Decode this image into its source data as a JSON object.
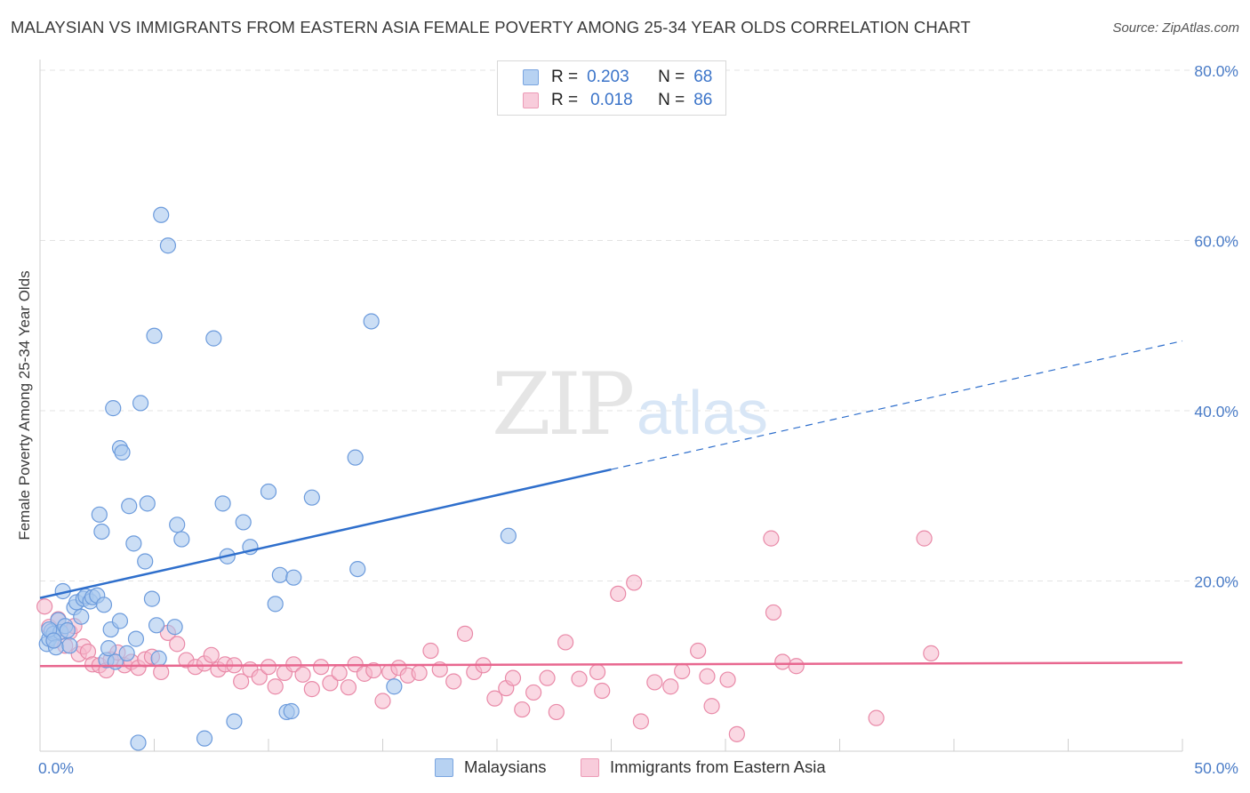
{
  "title": "MALAYSIAN VS IMMIGRANTS FROM EASTERN ASIA FEMALE POVERTY AMONG 25-34 YEAR OLDS CORRELATION CHART",
  "source": "Source: ZipAtlas.com",
  "watermark": {
    "zip": "ZIP",
    "atlas": "atlas"
  },
  "legend_top": [
    {
      "r_label": "R =",
      "r_value": "0.203",
      "n_label": "N =",
      "n_value": "68"
    },
    {
      "r_label": "R =",
      "r_value": "0.018",
      "n_label": "N =",
      "n_value": "86"
    }
  ],
  "legend_bottom": [
    {
      "label": "Malaysians"
    },
    {
      "label": "Immigrants from Eastern Asia"
    }
  ],
  "colors": {
    "blue_fill": "#a9c8ef",
    "blue_stroke": "#6c9bdc",
    "blue_line": "#2f6fcc",
    "pink_fill": "#f5b8cc",
    "pink_stroke": "#e98aa8",
    "pink_line": "#e8678f",
    "tick_text": "#4a7cc7",
    "grid": "#e3e3e3"
  },
  "chart_data": {
    "type": "scatter",
    "title": "MALAYSIAN VS IMMIGRANTS FROM EASTERN ASIA FEMALE POVERTY AMONG 25-34 YEAR OLDS CORRELATION CHART",
    "xlabel": "",
    "ylabel": "Female Poverty Among 25-34 Year Olds",
    "xlim": [
      0,
      50
    ],
    "ylim": [
      0,
      80
    ],
    "x_tick_labels": [
      "0.0%",
      "50.0%"
    ],
    "y_ticks": [
      20,
      40,
      60,
      80
    ],
    "y_tick_labels": [
      "20.0%",
      "40.0%",
      "60.0%",
      "80.0%"
    ],
    "grid": true,
    "legend_position": "top-center",
    "series": [
      {
        "name": "Malaysians",
        "R": 0.203,
        "N": 68,
        "trend": {
          "x": [
            0,
            25.0
          ],
          "y": [
            18.0,
            33.1
          ],
          "dashed_extension_to_x": 50,
          "dashed_extension_y": 48.2
        },
        "points": [
          [
            0.3,
            12.6
          ],
          [
            0.4,
            13.2
          ],
          [
            0.5,
            14.1
          ],
          [
            0.6,
            13.8
          ],
          [
            0.7,
            12.2
          ],
          [
            0.8,
            15.4
          ],
          [
            0.9,
            14.0
          ],
          [
            1.0,
            18.8
          ],
          [
            1.1,
            14.7
          ],
          [
            1.2,
            14.2
          ],
          [
            1.3,
            12.4
          ],
          [
            1.5,
            16.9
          ],
          [
            1.6,
            17.5
          ],
          [
            1.8,
            15.8
          ],
          [
            1.9,
            17.9
          ],
          [
            2.0,
            18.2
          ],
          [
            2.2,
            17.6
          ],
          [
            2.3,
            18.1
          ],
          [
            2.5,
            18.3
          ],
          [
            2.8,
            17.2
          ],
          [
            2.9,
            10.7
          ],
          [
            3.0,
            12.1
          ],
          [
            3.1,
            14.3
          ],
          [
            3.3,
            10.5
          ],
          [
            2.6,
            27.8
          ],
          [
            2.7,
            25.8
          ],
          [
            3.2,
            40.3
          ],
          [
            3.5,
            35.6
          ],
          [
            3.6,
            35.1
          ],
          [
            3.9,
            28.8
          ],
          [
            4.1,
            24.4
          ],
          [
            4.2,
            13.2
          ],
          [
            4.4,
            40.9
          ],
          [
            4.6,
            22.3
          ],
          [
            4.7,
            29.1
          ],
          [
            4.9,
            17.9
          ],
          [
            5.0,
            48.8
          ],
          [
            5.1,
            14.8
          ],
          [
            5.2,
            10.9
          ],
          [
            5.3,
            63.0
          ],
          [
            5.6,
            59.4
          ],
          [
            5.9,
            14.6
          ],
          [
            6.0,
            26.6
          ],
          [
            6.2,
            24.9
          ],
          [
            3.5,
            15.3
          ],
          [
            3.8,
            11.5
          ],
          [
            4.3,
            1.0
          ],
          [
            7.2,
            1.5
          ],
          [
            7.6,
            48.5
          ],
          [
            8.0,
            29.1
          ],
          [
            8.2,
            22.9
          ],
          [
            8.5,
            3.5
          ],
          [
            8.9,
            26.9
          ],
          [
            9.2,
            24.0
          ],
          [
            10.0,
            30.5
          ],
          [
            10.3,
            17.3
          ],
          [
            10.5,
            20.7
          ],
          [
            10.8,
            4.6
          ],
          [
            11.0,
            4.7
          ],
          [
            11.1,
            20.4
          ],
          [
            11.9,
            29.8
          ],
          [
            13.8,
            34.5
          ],
          [
            13.9,
            21.4
          ],
          [
            14.5,
            50.5
          ],
          [
            15.5,
            7.6
          ],
          [
            20.5,
            25.3
          ],
          [
            0.4,
            14.3
          ],
          [
            0.6,
            13.0
          ]
        ]
      },
      {
        "name": "Immigrants from Eastern Asia",
        "R": 0.018,
        "N": 86,
        "trend": {
          "x": [
            0,
            50
          ],
          "y": [
            10.0,
            10.4
          ]
        },
        "points": [
          [
            0.2,
            17.0
          ],
          [
            0.4,
            14.6
          ],
          [
            0.6,
            13.1
          ],
          [
            0.8,
            15.5
          ],
          [
            1.1,
            12.4
          ],
          [
            1.3,
            14.0
          ],
          [
            1.5,
            14.7
          ],
          [
            1.7,
            11.4
          ],
          [
            1.9,
            12.3
          ],
          [
            2.1,
            11.7
          ],
          [
            2.3,
            10.2
          ],
          [
            2.6,
            10.1
          ],
          [
            2.9,
            9.5
          ],
          [
            3.1,
            10.8
          ],
          [
            3.4,
            11.6
          ],
          [
            3.7,
            10.1
          ],
          [
            4.0,
            10.5
          ],
          [
            4.3,
            9.8
          ],
          [
            4.6,
            10.8
          ],
          [
            4.9,
            11.1
          ],
          [
            5.3,
            9.3
          ],
          [
            5.6,
            13.9
          ],
          [
            6.0,
            12.6
          ],
          [
            6.4,
            10.7
          ],
          [
            6.8,
            9.9
          ],
          [
            7.2,
            10.3
          ],
          [
            7.5,
            11.3
          ],
          [
            7.8,
            9.6
          ],
          [
            8.1,
            10.2
          ],
          [
            8.5,
            10.1
          ],
          [
            8.8,
            8.2
          ],
          [
            9.2,
            9.6
          ],
          [
            9.6,
            8.7
          ],
          [
            10.0,
            9.9
          ],
          [
            10.3,
            7.6
          ],
          [
            10.7,
            9.2
          ],
          [
            11.1,
            10.2
          ],
          [
            11.5,
            9.0
          ],
          [
            11.9,
            7.3
          ],
          [
            12.3,
            9.9
          ],
          [
            12.7,
            8.0
          ],
          [
            13.1,
            9.2
          ],
          [
            13.5,
            7.5
          ],
          [
            13.8,
            10.2
          ],
          [
            14.2,
            9.1
          ],
          [
            14.6,
            9.5
          ],
          [
            15.0,
            5.9
          ],
          [
            15.3,
            9.3
          ],
          [
            15.7,
            9.8
          ],
          [
            16.1,
            8.9
          ],
          [
            16.6,
            9.2
          ],
          [
            17.1,
            11.8
          ],
          [
            17.5,
            9.6
          ],
          [
            18.1,
            8.2
          ],
          [
            18.6,
            13.8
          ],
          [
            19.0,
            9.3
          ],
          [
            19.4,
            10.1
          ],
          [
            19.9,
            6.2
          ],
          [
            20.4,
            7.4
          ],
          [
            20.7,
            8.6
          ],
          [
            21.1,
            4.9
          ],
          [
            21.6,
            6.9
          ],
          [
            22.2,
            8.6
          ],
          [
            22.6,
            4.6
          ],
          [
            23.0,
            12.8
          ],
          [
            23.6,
            8.5
          ],
          [
            24.4,
            9.3
          ],
          [
            24.6,
            7.1
          ],
          [
            25.3,
            18.5
          ],
          [
            26.0,
            19.8
          ],
          [
            26.3,
            3.5
          ],
          [
            26.9,
            8.1
          ],
          [
            27.6,
            7.6
          ],
          [
            28.1,
            9.4
          ],
          [
            28.8,
            11.8
          ],
          [
            29.2,
            8.8
          ],
          [
            29.4,
            5.3
          ],
          [
            30.1,
            8.4
          ],
          [
            30.5,
            2.0
          ],
          [
            32.0,
            25.0
          ],
          [
            32.1,
            16.3
          ],
          [
            32.5,
            10.5
          ],
          [
            33.1,
            10.0
          ],
          [
            36.6,
            3.9
          ],
          [
            38.7,
            25.0
          ],
          [
            39.0,
            11.5
          ]
        ]
      }
    ]
  }
}
